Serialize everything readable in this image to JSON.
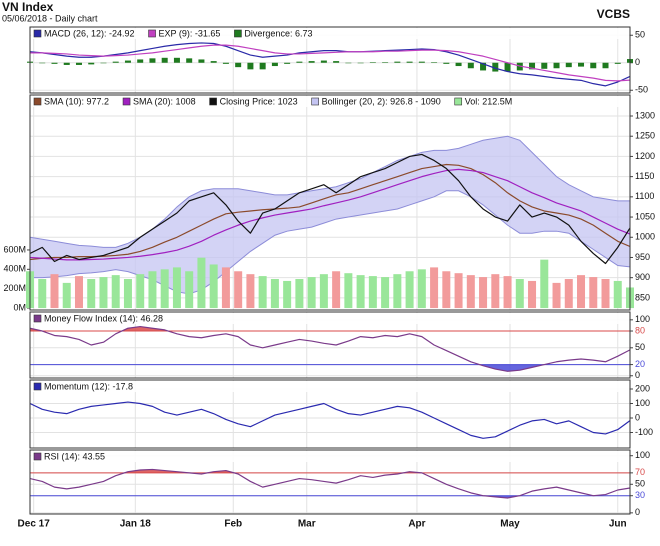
{
  "title": "VN Index",
  "subtitle": "05/06/2018 - Daily chart",
  "source": "VCBS",
  "chart_data": [
    {
      "type": "line",
      "xlim": [
        0,
        49
      ],
      "x": [
        0,
        1,
        2,
        3,
        4,
        5,
        6,
        7,
        8,
        9,
        10,
        11,
        12,
        13,
        14,
        15,
        16,
        17,
        18,
        19,
        20,
        21,
        22,
        23,
        24,
        25,
        26,
        27,
        28,
        29,
        30,
        31,
        32,
        33,
        34,
        35,
        36,
        37,
        38,
        39,
        40,
        41,
        42,
        43,
        44,
        45,
        46,
        47,
        48,
        49
      ],
      "ylim": [
        -55,
        65
      ],
      "yticks": [
        -50,
        0,
        50
      ],
      "grid": true,
      "series": [
        {
          "name": "MACD (26, 12): -24.92",
          "type": "line",
          "color": "#2a2aa8",
          "values": [
            20,
            18,
            15,
            12,
            10,
            10,
            12,
            15,
            18,
            22,
            26,
            30,
            33,
            35,
            36,
            35,
            30,
            22,
            14,
            10,
            12,
            14,
            18,
            20,
            22,
            22,
            20,
            20,
            21,
            22,
            23,
            24,
            25,
            24,
            20,
            14,
            6,
            -2,
            -10,
            -16,
            -20,
            -22,
            -25,
            -28,
            -30,
            -32,
            -38,
            -42,
            -35,
            -24.92
          ]
        },
        {
          "name": "EXP (9): -31.65",
          "type": "line",
          "color": "#c040c0",
          "values": [
            18,
            18,
            17,
            16,
            14,
            13,
            12,
            13,
            14,
            16,
            18,
            21,
            24,
            27,
            30,
            32,
            32,
            30,
            26,
            22,
            18,
            16,
            16,
            17,
            18,
            19,
            20,
            20,
            20,
            21,
            21,
            22,
            23,
            23,
            22,
            20,
            16,
            12,
            6,
            0,
            -6,
            -10,
            -14,
            -18,
            -22,
            -25,
            -28,
            -32,
            -33,
            -31.65
          ]
        },
        {
          "name": "Divergence: 6.73",
          "type": "bar",
          "color": "#1f7a1f",
          "values": [
            2,
            0,
            -2,
            -4,
            -4,
            -3,
            0,
            2,
            4,
            6,
            8,
            9,
            9,
            8,
            6,
            3,
            -2,
            -8,
            -12,
            -12,
            -6,
            -2,
            2,
            3,
            4,
            3,
            0,
            0,
            1,
            1,
            2,
            2,
            2,
            1,
            -2,
            -6,
            -10,
            -14,
            -16,
            -16,
            -14,
            -12,
            -11,
            -10,
            -8,
            -7,
            -10,
            -10,
            -2,
            6.73
          ]
        }
      ]
    },
    {
      "type": "line",
      "xlim": [
        0,
        49
      ],
      "x": [
        0,
        1,
        2,
        3,
        4,
        5,
        6,
        7,
        8,
        9,
        10,
        11,
        12,
        13,
        14,
        15,
        16,
        17,
        18,
        19,
        20,
        21,
        22,
        23,
        24,
        25,
        26,
        27,
        28,
        29,
        30,
        31,
        32,
        33,
        34,
        35,
        36,
        37,
        38,
        39,
        40,
        41,
        42,
        43,
        44,
        45,
        46,
        47,
        48,
        49
      ],
      "ylim": [
        820,
        1352
      ],
      "yticks": [
        850,
        900,
        950,
        1000,
        1050,
        1100,
        1150,
        1200,
        1250,
        1300
      ],
      "grid": true,
      "y2lim": [
        -20,
        2200
      ],
      "y2ticks": [
        {
          "value": 0,
          "label": "0M"
        },
        {
          "value": 200,
          "label": "200M"
        },
        {
          "value": 400,
          "label": "400M"
        },
        {
          "value": 600,
          "label": "600M"
        }
      ],
      "series": [
        {
          "name": "SMA (10): 977.2",
          "type": "line",
          "color": "#8b4a2b",
          "values": [
            945,
            948,
            950,
            950,
            952,
            952,
            953,
            955,
            958,
            965,
            975,
            988,
            1000,
            1015,
            1030,
            1045,
            1058,
            1062,
            1065,
            1068,
            1070,
            1072,
            1075,
            1085,
            1095,
            1105,
            1110,
            1120,
            1130,
            1140,
            1150,
            1160,
            1170,
            1175,
            1180,
            1178,
            1170,
            1155,
            1135,
            1110,
            1090,
            1075,
            1065,
            1060,
            1055,
            1045,
            1030,
            1010,
            990,
            977.2
          ]
        },
        {
          "name": "SMA (20): 1008",
          "type": "line",
          "color": "#a020c0",
          "values": [
            950,
            948,
            946,
            944,
            944,
            945,
            946,
            948,
            950,
            953,
            957,
            962,
            968,
            978,
            990,
            1005,
            1018,
            1030,
            1040,
            1048,
            1055,
            1060,
            1065,
            1070,
            1078,
            1085,
            1092,
            1100,
            1110,
            1120,
            1130,
            1140,
            1150,
            1158,
            1165,
            1168,
            1165,
            1160,
            1150,
            1140,
            1125,
            1110,
            1098,
            1085,
            1075,
            1065,
            1050,
            1035,
            1020,
            1008
          ]
        },
        {
          "name": "Closing Price: 1023",
          "type": "line",
          "color": "#111111",
          "values": [
            960,
            975,
            940,
            955,
            945,
            950,
            955,
            965,
            975,
            1000,
            1020,
            1040,
            1060,
            1090,
            1100,
            1110,
            1080,
            1040,
            1010,
            1060,
            1070,
            1090,
            1110,
            1120,
            1130,
            1110,
            1130,
            1150,
            1160,
            1170,
            1185,
            1200,
            1205,
            1190,
            1170,
            1140,
            1100,
            1070,
            1050,
            1040,
            1080,
            1050,
            1060,
            1050,
            1030,
            990,
            960,
            935,
            975,
            1023
          ]
        },
        {
          "name": "Bollinger (20, 2): 926.8 - 1090",
          "type": "band",
          "color": "#8c8cd8",
          "fill": "#c4c4f2",
          "upper": [
            1000,
            995,
            990,
            985,
            980,
            978,
            975,
            975,
            985,
            1000,
            1020,
            1045,
            1075,
            1100,
            1115,
            1120,
            1120,
            1120,
            1115,
            1110,
            1105,
            1105,
            1110,
            1115,
            1120,
            1125,
            1135,
            1145,
            1160,
            1175,
            1190,
            1200,
            1210,
            1215,
            1215,
            1220,
            1230,
            1240,
            1245,
            1250,
            1240,
            1210,
            1180,
            1150,
            1130,
            1115,
            1100,
            1095,
            1090,
            1090
          ],
          "lower": [
            900,
            900,
            902,
            905,
            910,
            912,
            915,
            920,
            915,
            905,
            895,
            880,
            865,
            860,
            870,
            890,
            915,
            940,
            965,
            985,
            1005,
            1015,
            1020,
            1025,
            1035,
            1045,
            1050,
            1055,
            1060,
            1065,
            1070,
            1080,
            1090,
            1100,
            1115,
            1115,
            1100,
            1080,
            1055,
            1030,
            1010,
            1010,
            1015,
            1015,
            1010,
            990,
            970,
            950,
            930,
            926.8
          ]
        },
        {
          "name": "Vol: 212.5M",
          "type": "bar",
          "axis": "y2",
          "color": "#99e699",
          "values": [
            380,
            300,
            350,
            260,
            330,
            300,
            320,
            340,
            300,
            350,
            380,
            400,
            420,
            380,
            520,
            450,
            420,
            380,
            350,
            330,
            300,
            280,
            300,
            320,
            350,
            380,
            360,
            340,
            330,
            320,
            350,
            380,
            400,
            420,
            380,
            360,
            340,
            320,
            350,
            330,
            300,
            280,
            500,
            260,
            300,
            340,
            320,
            300,
            280,
            212.5
          ],
          "colors": [
            "#99e699",
            "#99e699",
            "#f29b9b",
            "#99e699",
            "#f29b9b",
            "#99e699",
            "#99e699",
            "#99e699",
            "#99e699",
            "#99e699",
            "#99e699",
            "#99e699",
            "#99e699",
            "#99e699",
            "#99e699",
            "#99e699",
            "#f29b9b",
            "#f29b9b",
            "#f29b9b",
            "#99e699",
            "#99e699",
            "#99e699",
            "#99e699",
            "#99e699",
            "#99e699",
            "#f29b9b",
            "#99e699",
            "#99e699",
            "#99e699",
            "#99e699",
            "#99e699",
            "#99e699",
            "#99e699",
            "#f29b9b",
            "#f29b9b",
            "#f29b9b",
            "#f29b9b",
            "#f29b9b",
            "#f29b9b",
            "#f29b9b",
            "#99e699",
            "#f29b9b",
            "#99e699",
            "#f29b9b",
            "#f29b9b",
            "#f29b9b",
            "#f29b9b",
            "#f29b9b",
            "#99e699",
            "#99e699"
          ]
        }
      ]
    },
    {
      "type": "line",
      "xlim": [
        0,
        49
      ],
      "x": [
        0,
        1,
        2,
        3,
        4,
        5,
        6,
        7,
        8,
        9,
        10,
        11,
        12,
        13,
        14,
        15,
        16,
        17,
        18,
        19,
        20,
        21,
        22,
        23,
        24,
        25,
        26,
        27,
        28,
        29,
        30,
        31,
        32,
        33,
        34,
        35,
        36,
        37,
        38,
        39,
        40,
        41,
        42,
        43,
        44,
        45,
        46,
        47,
        48,
        49
      ],
      "ylim": [
        -4,
        114
      ],
      "yticks": [
        0,
        20,
        50,
        80,
        100
      ],
      "grid": true,
      "ref_lines": [
        {
          "value": 80,
          "color": "#d84a4a"
        },
        {
          "value": 20,
          "color": "#4a4ad8"
        }
      ],
      "series": [
        {
          "name": "Money Flow Index (14): 46.28",
          "type": "line",
          "color": "#7a3a8a",
          "values": [
            85,
            80,
            72,
            70,
            65,
            55,
            60,
            75,
            85,
            88,
            85,
            82,
            75,
            70,
            68,
            72,
            75,
            70,
            55,
            50,
            55,
            60,
            65,
            62,
            58,
            55,
            62,
            70,
            68,
            72,
            70,
            75,
            70,
            55,
            45,
            35,
            25,
            18,
            12,
            8,
            10,
            15,
            20,
            25,
            28,
            30,
            28,
            25,
            35,
            46.28
          ]
        }
      ]
    },
    {
      "type": "line",
      "xlim": [
        0,
        49
      ],
      "x": [
        0,
        1,
        2,
        3,
        4,
        5,
        6,
        7,
        8,
        9,
        10,
        11,
        12,
        13,
        14,
        15,
        16,
        17,
        18,
        19,
        20,
        21,
        22,
        23,
        24,
        25,
        26,
        27,
        28,
        29,
        30,
        31,
        32,
        33,
        34,
        35,
        36,
        37,
        38,
        39,
        40,
        41,
        42,
        43,
        44,
        45,
        46,
        47,
        48,
        49
      ],
      "ylim": [
        -207,
        262
      ],
      "yticks": [
        -100,
        0,
        100,
        200
      ],
      "grid": true,
      "series": [
        {
          "name": "Momentum (12): -17.8",
          "type": "line",
          "color": "#2a2ab0",
          "values": [
            100,
            60,
            40,
            30,
            60,
            80,
            90,
            100,
            110,
            100,
            80,
            40,
            20,
            40,
            60,
            30,
            -10,
            -40,
            -60,
            -20,
            20,
            40,
            60,
            80,
            100,
            60,
            30,
            20,
            40,
            60,
            80,
            70,
            40,
            0,
            -40,
            -80,
            -120,
            -140,
            -130,
            -90,
            -50,
            -20,
            -10,
            -40,
            -20,
            -60,
            -100,
            -110,
            -80,
            -17.8
          ]
        }
      ]
    },
    {
      "type": "line",
      "xlim": [
        0,
        49
      ],
      "x": [
        0,
        1,
        2,
        3,
        4,
        5,
        6,
        7,
        8,
        9,
        10,
        11,
        12,
        13,
        14,
        15,
        16,
        17,
        18,
        19,
        20,
        21,
        22,
        23,
        24,
        25,
        26,
        27,
        28,
        29,
        30,
        31,
        32,
        33,
        34,
        35,
        36,
        37,
        38,
        39,
        40,
        41,
        42,
        43,
        44,
        45,
        46,
        47,
        48,
        49
      ],
      "xticks": [
        {
          "value": 0.3,
          "label": "Dec 17"
        },
        {
          "value": 8.6,
          "label": "Jan 18"
        },
        {
          "value": 16.6,
          "label": "Feb"
        },
        {
          "value": 22.6,
          "label": "Mar"
        },
        {
          "value": 31.6,
          "label": "Apr"
        },
        {
          "value": 39.2,
          "label": "May"
        },
        {
          "value": 48,
          "label": "Jun"
        }
      ],
      "ylim": [
        -2,
        110
      ],
      "yticks": [
        0,
        30,
        50,
        70,
        100
      ],
      "grid": true,
      "ref_lines": [
        {
          "value": 70,
          "color": "#d84a4a"
        },
        {
          "value": 30,
          "color": "#4a4ad8"
        }
      ],
      "series": [
        {
          "name": "RSI (14): 43.55",
          "type": "line",
          "color": "#7a3a8a",
          "values": [
            60,
            55,
            45,
            42,
            45,
            50,
            55,
            65,
            72,
            75,
            76,
            74,
            72,
            70,
            68,
            72,
            74,
            68,
            55,
            45,
            50,
            55,
            60,
            58,
            55,
            52,
            58,
            65,
            62,
            66,
            68,
            72,
            70,
            60,
            50,
            42,
            35,
            30,
            28,
            26,
            30,
            38,
            42,
            45,
            40,
            35,
            30,
            32,
            40,
            43.55
          ]
        }
      ]
    }
  ]
}
